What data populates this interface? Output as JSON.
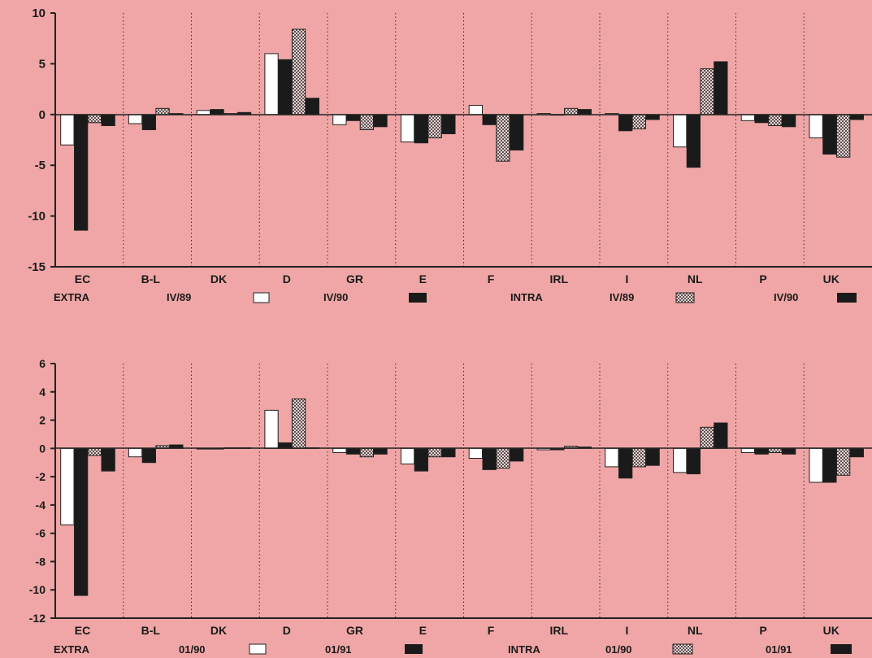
{
  "chart_data": [
    {
      "type": "bar",
      "categories": [
        "EC",
        "B-L",
        "DK",
        "D",
        "GR",
        "E",
        "F",
        "IRL",
        "I",
        "NL",
        "P",
        "UK"
      ],
      "ylim": [
        -15,
        10
      ],
      "yticks": [
        10,
        5,
        0,
        -5,
        -10,
        -15
      ],
      "grid": "vertical dotted separators between categories",
      "series": [
        {
          "group": "EXTRA",
          "name": "IV/89",
          "fill": "white",
          "values": [
            -3.0,
            -0.9,
            0.4,
            6.0,
            -1.0,
            -2.7,
            0.9,
            0.1,
            0.1,
            -3.2,
            -0.6,
            -2.3
          ]
        },
        {
          "group": "EXTRA",
          "name": "IV/90",
          "fill": "black",
          "values": [
            -11.4,
            -1.5,
            0.5,
            5.4,
            -0.6,
            -2.8,
            -1.0,
            0.0,
            -1.6,
            -5.2,
            -0.8,
            -3.9
          ]
        },
        {
          "group": "INTRA",
          "name": "IV/89",
          "fill": "hatched",
          "values": [
            -0.8,
            0.6,
            0.1,
            8.4,
            -1.5,
            -2.3,
            -4.6,
            0.6,
            -1.4,
            4.5,
            -1.1,
            -4.2
          ]
        },
        {
          "group": "INTRA",
          "name": "IV/90",
          "fill": "black",
          "values": [
            -1.1,
            0.1,
            0.2,
            1.6,
            -1.2,
            -1.9,
            -3.5,
            0.5,
            -0.5,
            5.2,
            -1.2,
            -0.5
          ]
        }
      ],
      "legend": {
        "extra_label": "EXTRA",
        "extra_p1": "IV/89",
        "extra_p2": "IV/90",
        "intra_label": "INTRA",
        "intra_p1": "IV/89",
        "intra_p2": "IV/90"
      }
    },
    {
      "type": "bar",
      "categories": [
        "EC",
        "B-L",
        "DK",
        "D",
        "GR",
        "E",
        "F",
        "IRL",
        "I",
        "NL",
        "P",
        "UK"
      ],
      "ylim": [
        -12,
        6
      ],
      "yticks": [
        6,
        4,
        2,
        0,
        -2,
        -4,
        -6,
        -8,
        -10,
        -12
      ],
      "grid": "vertical dotted separators between categories",
      "series": [
        {
          "group": "EXTRA",
          "name": "01/90",
          "fill": "white",
          "values": [
            -5.4,
            -0.6,
            0.0,
            2.7,
            -0.3,
            -1.1,
            -0.7,
            -0.1,
            -1.3,
            -1.7,
            -0.3,
            -2.4
          ]
        },
        {
          "group": "EXTRA",
          "name": "01/91",
          "fill": "black",
          "values": [
            -10.4,
            -1.0,
            0.0,
            0.4,
            -0.4,
            -1.6,
            -1.5,
            -0.1,
            -2.1,
            -1.8,
            -0.4,
            -2.4
          ]
        },
        {
          "group": "INTRA",
          "name": "01/90",
          "fill": "hatched",
          "values": [
            -0.5,
            0.2,
            0.05,
            3.5,
            -0.6,
            -0.6,
            -1.4,
            0.15,
            -1.3,
            1.5,
            -0.3,
            -1.9
          ]
        },
        {
          "group": "INTRA",
          "name": "01/91",
          "fill": "black",
          "values": [
            -1.6,
            0.25,
            0.05,
            0.05,
            -0.4,
            -0.6,
            -0.9,
            0.1,
            -1.2,
            1.8,
            -0.4,
            -0.6
          ]
        }
      ],
      "legend": {
        "extra_label": "EXTRA",
        "extra_p1": "01/90",
        "extra_p2": "01/91",
        "intra_label": "INTRA",
        "intra_p1": "01/90",
        "intra_p2": "01/91"
      }
    }
  ]
}
